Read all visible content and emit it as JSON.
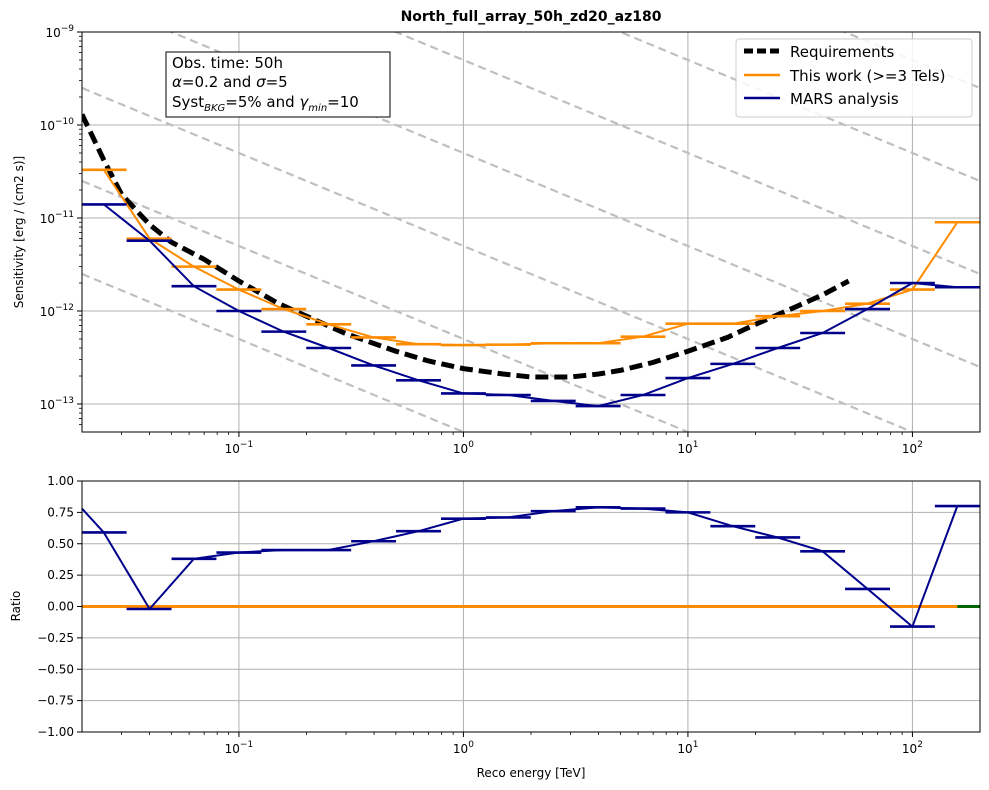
{
  "chart_data": [
    {
      "type": "line",
      "title": "North_full_array_50h_zd20_az180",
      "xlabel": "",
      "ylabel": "Sensitivity [erg / (cm2 s)]",
      "xscale": "log",
      "yscale": "log",
      "xlim": [
        0.02,
        200
      ],
      "ylim": [
        5e-14,
        1e-09
      ],
      "grid": true,
      "legend_position": "top-right",
      "x_tick_labels": [
        {
          "value": 0.1,
          "base": "10",
          "exp": "−1"
        },
        {
          "value": 1,
          "base": "10",
          "exp": "0"
        },
        {
          "value": 10,
          "base": "10",
          "exp": "1"
        },
        {
          "value": 100,
          "base": "10",
          "exp": "2"
        }
      ],
      "y_tick_labels": [
        {
          "value": 1e-09,
          "base": "10",
          "exp": "−9"
        },
        {
          "value": 1e-10,
          "base": "10",
          "exp": "−10"
        },
        {
          "value": 1e-11,
          "base": "10",
          "exp": "−11"
        },
        {
          "value": 1e-12,
          "base": "10",
          "exp": "−12"
        },
        {
          "value": 1e-13,
          "base": "10",
          "exp": "−13"
        }
      ],
      "annotation": {
        "line1": "Obs. time: 50h",
        "line2_alpha_symbol": "α",
        "line2_alpha_value": "=0.2 and ",
        "line2_sigma_symbol": "σ",
        "line2_sigma_value": "=5",
        "line3_syst": "Syst",
        "line3_syst_sub": "BKG",
        "line3_syst_value": "=5% and ",
        "line3_gamma": "γ",
        "line3_gamma_sub": "min",
        "line3_gamma_value": "=10"
      },
      "reference_lines": {
        "color": "#bfbfbf",
        "style": "dashed",
        "slope": -1,
        "values_at_E1": [
          5e-14,
          5e-13,
          5e-12,
          5e-11,
          5e-10,
          5e-09,
          5e-08
        ]
      },
      "series": [
        {
          "name": "Requirements",
          "color": "#000000",
          "style": "dashed",
          "x": [
            0.02,
            0.025,
            0.03,
            0.04,
            0.05,
            0.07,
            0.1,
            0.15,
            0.2,
            0.3,
            0.5,
            0.7,
            1,
            1.5,
            2,
            3,
            4,
            5,
            7,
            10,
            15,
            20,
            30,
            40,
            52
          ],
          "y": [
            1.3e-10,
            4.2e-11,
            1.8e-11,
            8.5e-12,
            5.5e-12,
            3.6e-12,
            2.1e-12,
            1.2e-12,
            8.8e-13,
            5.7e-13,
            3.7e-13,
            2.9e-13,
            2.4e-13,
            2.1e-13,
            1.95e-13,
            1.95e-13,
            2.1e-13,
            2.3e-13,
            2.8e-13,
            3.7e-13,
            5.2e-13,
            7.2e-13,
            1.1e-12,
            1.5e-12,
            2.1e-12
          ]
        },
        {
          "name": "This work (>=3 Tels)",
          "color": "#ff8c00",
          "style": "solid",
          "x": [
            0.025,
            0.04,
            0.063,
            0.1,
            0.158,
            0.251,
            0.398,
            0.631,
            1.0,
            1.585,
            2.512,
            3.981,
            6.31,
            10.0,
            15.85,
            25.12,
            39.81,
            63.1,
            100,
            158.5
          ],
          "y": [
            3.3e-11,
            6e-12,
            3e-12,
            1.7e-12,
            1.05e-12,
            7.2e-13,
            5.2e-13,
            4.4e-13,
            4.3e-13,
            4.35e-13,
            4.5e-13,
            4.5e-13,
            5.3e-13,
            7.3e-13,
            7.3e-13,
            8.8e-13,
            1e-12,
            1.2e-12,
            1.7e-12,
            9e-12
          ],
          "xerr_low": [
            0.02,
            0.0316,
            0.0501,
            0.0794,
            0.1259,
            0.1995,
            0.3162,
            0.5012,
            0.7943,
            1.2589,
            1.9953,
            3.1623,
            5.0119,
            7.9433,
            12.589,
            19.953,
            31.623,
            50.119,
            79.433,
            125.89
          ],
          "xerr_high": [
            0.0316,
            0.0501,
            0.0794,
            0.1259,
            0.1995,
            0.3162,
            0.5012,
            0.7943,
            1.2589,
            1.9953,
            3.1623,
            5.0119,
            7.9433,
            12.589,
            19.953,
            31.623,
            50.119,
            79.433,
            125.89,
            199.53
          ]
        },
        {
          "name": "MARS analysis",
          "color": "#00008b",
          "style": "solid",
          "x": [
            0.025,
            0.04,
            0.063,
            0.1,
            0.158,
            0.251,
            0.398,
            0.631,
            1.0,
            1.585,
            2.512,
            3.981,
            6.31,
            10.0,
            15.85,
            25.12,
            39.81,
            63.1,
            100,
            158.5
          ],
          "y": [
            1.4e-11,
            5.7e-12,
            1.85e-12,
            1e-12,
            6e-13,
            4e-13,
            2.6e-13,
            1.8e-13,
            1.3e-13,
            1.25e-13,
            1.08e-13,
            9.5e-14,
            1.25e-13,
            1.9e-13,
            2.7e-13,
            4e-13,
            5.8e-13,
            1.05e-12,
            2e-12,
            1.8e-12
          ],
          "xerr_low": [
            0.02,
            0.0316,
            0.0501,
            0.0794,
            0.1259,
            0.1995,
            0.3162,
            0.5012,
            0.7943,
            1.2589,
            1.9953,
            3.1623,
            5.0119,
            7.9433,
            12.589,
            19.953,
            31.623,
            50.119,
            79.433,
            125.89
          ],
          "xerr_high": [
            0.0316,
            0.0501,
            0.0794,
            0.1259,
            0.1995,
            0.3162,
            0.5012,
            0.7943,
            1.2589,
            1.9953,
            3.1623,
            5.0119,
            7.9433,
            12.589,
            19.953,
            31.623,
            50.119,
            79.433,
            125.89,
            199.53
          ]
        }
      ]
    },
    {
      "type": "line",
      "title": "",
      "xlabel": "Reco energy [TeV]",
      "ylabel": "Ratio",
      "xscale": "log",
      "xlim": [
        0.02,
        200
      ],
      "ylim": [
        -1.0,
        1.0
      ],
      "grid": true,
      "x_tick_labels": [
        {
          "value": 0.1,
          "base": "10",
          "exp": "−1"
        },
        {
          "value": 1,
          "base": "10",
          "exp": "0"
        },
        {
          "value": 10,
          "base": "10",
          "exp": "1"
        },
        {
          "value": 100,
          "base": "10",
          "exp": "2"
        }
      ],
      "y_tick_labels": [
        {
          "value": 1.0,
          "label": "1.00"
        },
        {
          "value": 0.75,
          "label": "0.75"
        },
        {
          "value": 0.5,
          "label": "0.50"
        },
        {
          "value": 0.25,
          "label": "0.25"
        },
        {
          "value": 0.0,
          "label": "0.00"
        },
        {
          "value": -0.25,
          "label": "−0.25"
        },
        {
          "value": -0.5,
          "label": "−0.50"
        },
        {
          "value": -0.75,
          "label": "−0.75"
        },
        {
          "value": -1.0,
          "label": "−1.00"
        }
      ],
      "series": [
        {
          "color": "#00008b",
          "x": [
            0.025,
            0.04,
            0.063,
            0.1,
            0.158,
            0.251,
            0.398,
            0.631,
            1.0,
            1.585,
            2.512,
            3.981,
            6.31,
            10.0,
            15.85,
            25.12,
            39.81,
            63.1,
            100,
            158.5
          ],
          "y": [
            0.59,
            -0.02,
            0.38,
            0.43,
            0.45,
            0.45,
            0.52,
            0.6,
            0.7,
            0.71,
            0.76,
            0.79,
            0.78,
            0.75,
            0.64,
            0.55,
            0.44,
            0.14,
            -0.16,
            0.8
          ],
          "line_start": [
            0.02,
            0.78
          ],
          "xerr_low": [
            0.02,
            0.0316,
            0.0501,
            0.0794,
            0.1259,
            0.1995,
            0.3162,
            0.5012,
            0.7943,
            1.2589,
            1.9953,
            3.1623,
            5.0119,
            7.9433,
            12.589,
            19.953,
            31.623,
            50.119,
            79.433,
            125.89
          ],
          "xerr_high": [
            0.0316,
            0.0501,
            0.0794,
            0.1259,
            0.1995,
            0.3162,
            0.5012,
            0.7943,
            1.2589,
            1.9953,
            3.1623,
            5.0119,
            7.9433,
            12.589,
            19.953,
            31.623,
            50.119,
            79.433,
            125.89,
            199.53
          ]
        },
        {
          "color": "#ff8c00",
          "x": [
            0.02,
            158.5
          ],
          "y": [
            0.0,
            0.0
          ]
        },
        {
          "color": "#006400",
          "x": [
            158.5,
            200
          ],
          "y": [
            0.0,
            0.0
          ]
        }
      ]
    }
  ]
}
